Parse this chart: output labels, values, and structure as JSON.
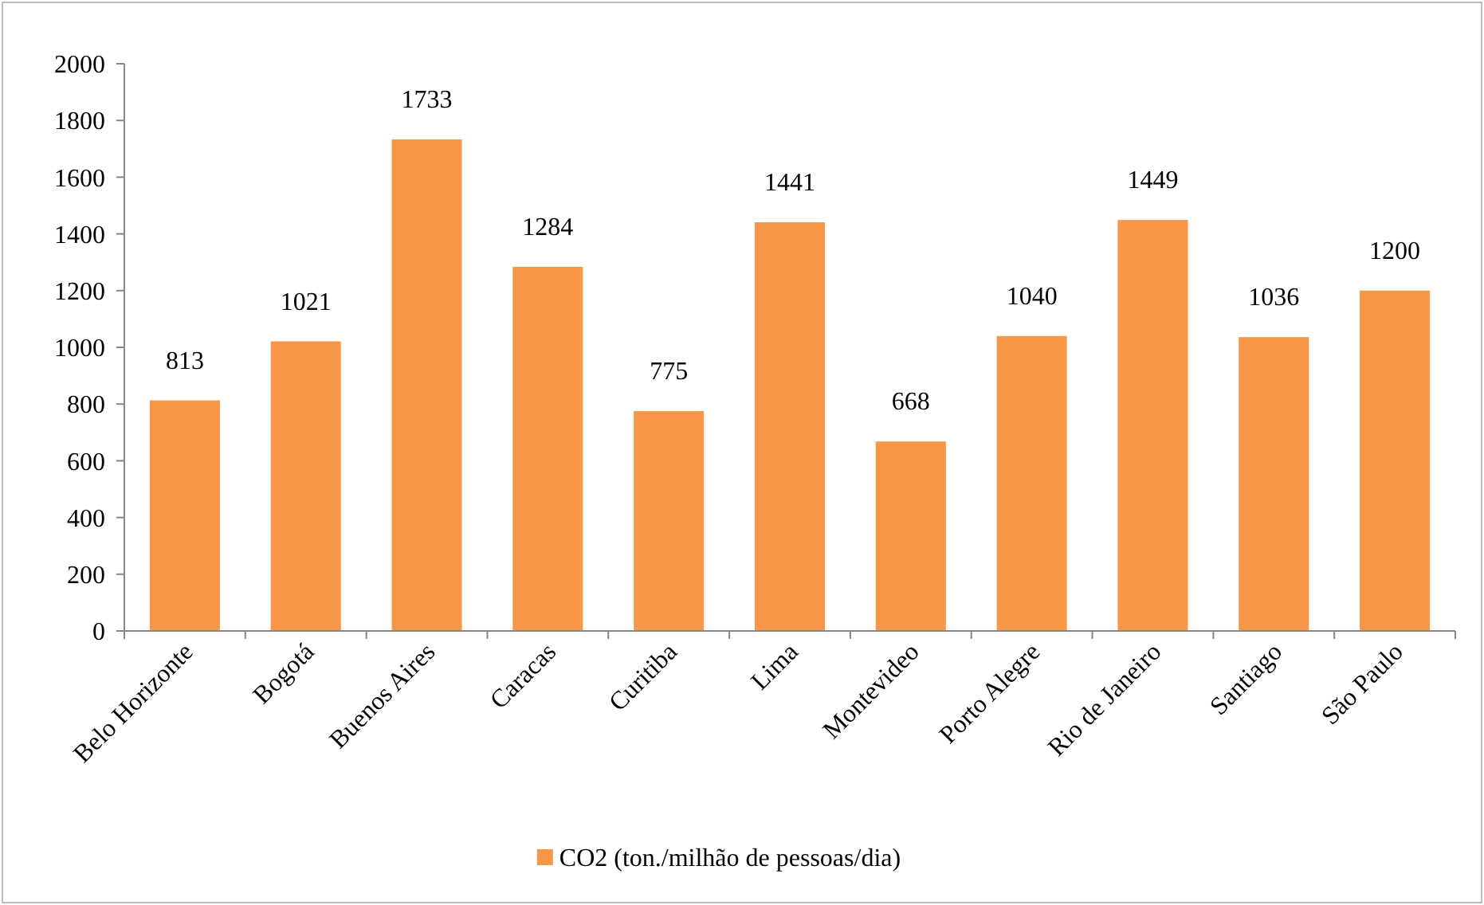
{
  "chart_data": {
    "type": "bar",
    "categories": [
      "Belo Horizonte",
      "Bogotá",
      "Buenos Aires",
      "Caracas",
      "Curitiba",
      "Lima",
      "Montevideo",
      "Porto Alegre",
      "Rio de Janeiro",
      "Santiago",
      "São Paulo"
    ],
    "series": [
      {
        "name": "CO2 (ton./milhão de pessoas/dia)",
        "color": "#f79646",
        "values": [
          813,
          1021,
          1733,
          1284,
          775,
          1441,
          668,
          1040,
          1449,
          1036,
          1200
        ]
      }
    ],
    "ylim": [
      0,
      2000
    ],
    "yticks": [
      0,
      200,
      400,
      600,
      800,
      1000,
      1200,
      1400,
      1600,
      1800,
      2000
    ],
    "data_labels": true,
    "legend": "bottom",
    "grid": false
  }
}
